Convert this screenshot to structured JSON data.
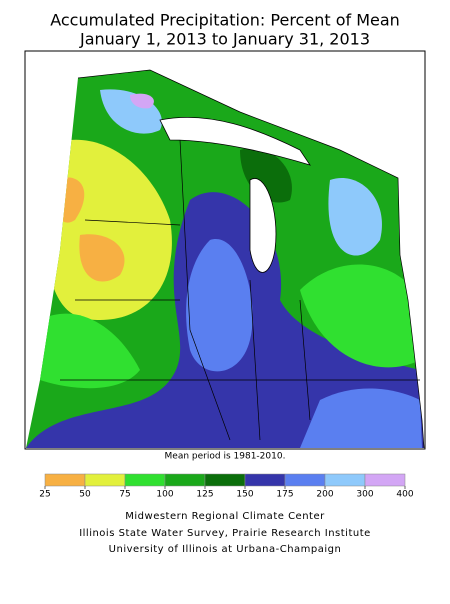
{
  "title": {
    "line1": "Accumulated Precipitation: Percent of Mean",
    "line2": "January 1, 2013 to January 31, 2013"
  },
  "note": "Mean period is 1981-2010.",
  "legend": {
    "breaks": [
      25,
      50,
      75,
      100,
      125,
      150,
      175,
      200,
      300,
      400
    ],
    "colors": [
      "#f7b043",
      "#e2f03c",
      "#30e030",
      "#1aa81a",
      "#0b6e0b",
      "#3535aa",
      "#5a7ff0",
      "#8ec9fb",
      "#d3a6f5"
    ]
  },
  "credits": [
    "Midwestern Regional Climate Center",
    "Illinois State Water Survey, Prairie Research Institute",
    "University of Illinois at Urbana-Champaign"
  ]
}
